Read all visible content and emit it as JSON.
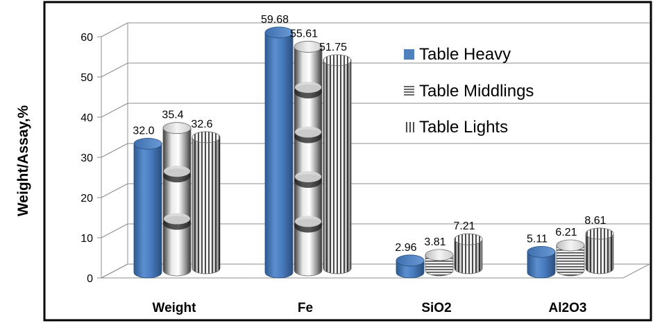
{
  "chart_data": {
    "type": "bar",
    "title": "",
    "xlabel": "",
    "ylabel": "Weight/Assay,%",
    "categories": [
      "Weight",
      "Fe",
      "SiO2",
      "Al2O3"
    ],
    "series": [
      {
        "name": "Table Heavy",
        "values": [
          32.0,
          59.68,
          2.96,
          5.11
        ],
        "labels": [
          "32.0",
          "59.68",
          "2.96",
          "5.11"
        ],
        "color": "#4f81bd"
      },
      {
        "name": "Table Middlings",
        "values": [
          35.4,
          55.61,
          3.81,
          6.21
        ],
        "labels": [
          "35.4",
          "55.61",
          "3.81",
          "6.21"
        ],
        "color": "#8c8c8c"
      },
      {
        "name": "Table Lights",
        "values": [
          32.6,
          51.75,
          7.21,
          8.61
        ],
        "labels": [
          "32.6",
          "51.75",
          "7.21",
          "8.61"
        ],
        "color": "#a6a6a6"
      }
    ],
    "ylim": [
      0,
      60
    ],
    "yticks": [
      "0",
      "10",
      "20",
      "30",
      "40",
      "50",
      "60"
    ],
    "grid": true,
    "legend": "right"
  }
}
